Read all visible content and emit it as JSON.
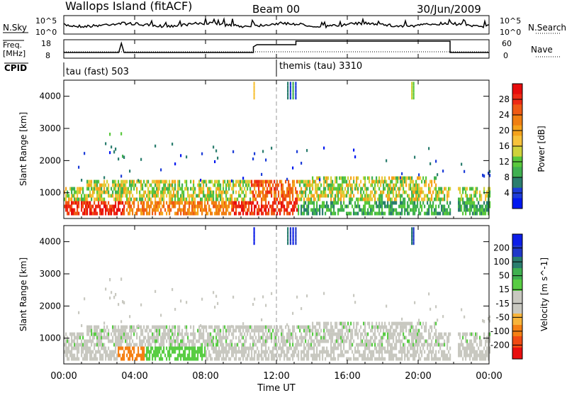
{
  "header": {
    "station": "Wallops Island (fitACF)",
    "beam": "Beam 00",
    "date": "30/Jun/2009"
  },
  "noise_panel": {
    "left_label": "N.Sky",
    "right_label": "N.Search",
    "left_ticks": [
      "10^5",
      "10^0"
    ],
    "right_ticks": [
      "10^5",
      "10^0"
    ]
  },
  "freq_panel": {
    "left_label_1": "Freq.",
    "left_label_2": "[MHz]",
    "right_label": "Nave",
    "left_ticks": [
      "18",
      "8"
    ],
    "right_ticks": [
      "60",
      "0"
    ]
  },
  "cpid_panel": {
    "label": "CPID",
    "modes": [
      {
        "name": "tau (fast) 503"
      },
      {
        "name": "themis (tau) 3310"
      }
    ]
  },
  "colors": {
    "power": [
      "#0018f0",
      "#1c3cd8",
      "#2a7d6e",
      "#3fb050",
      "#59c83c",
      "#cfd23a",
      "#f7c23a",
      "#f5a21b",
      "#f07f12",
      "#ef5a14",
      "#ee2a14",
      "#e70c0c"
    ],
    "velocity": [
      "#e90f0f",
      "#f14a13",
      "#f58014",
      "#f8b43a",
      "#c8c8c0",
      "#c8c8c0",
      "#58cd43",
      "#3fb050",
      "#2a7d6e",
      "#2038c8",
      "#0d1ee8"
    ]
  },
  "chart_data": [
    {
      "type": "heatmap",
      "name": "power",
      "ylabel": "Slant Range [km]",
      "yticks": [
        "1000",
        "2000",
        "3000",
        "4000"
      ],
      "ylim": [
        200,
        4500
      ],
      "xlim_hours": [
        0,
        24
      ],
      "colorbar_label": "Power [dB]",
      "colorbar_ticks": [
        "4",
        "8",
        "12",
        "16",
        "20",
        "24",
        "28"
      ],
      "colorbar_range": [
        0,
        32
      ]
    },
    {
      "type": "heatmap",
      "name": "velocity",
      "ylabel": "Slant Range [km]",
      "yticks": [
        "1000",
        "2000",
        "3000",
        "4000"
      ],
      "ylim": [
        200,
        4500
      ],
      "xlim_hours": [
        0,
        24
      ],
      "colorbar_label": "Velocity [m s^-1]",
      "colorbar_ticks": [
        "-200",
        "-100",
        "-50",
        "-15",
        "15",
        "50",
        "100",
        "200"
      ]
    }
  ],
  "xaxis": {
    "label": "Time UT",
    "ticks": [
      "00:00",
      "04:00",
      "08:00",
      "12:00",
      "16:00",
      "20:00",
      "00:00"
    ]
  }
}
